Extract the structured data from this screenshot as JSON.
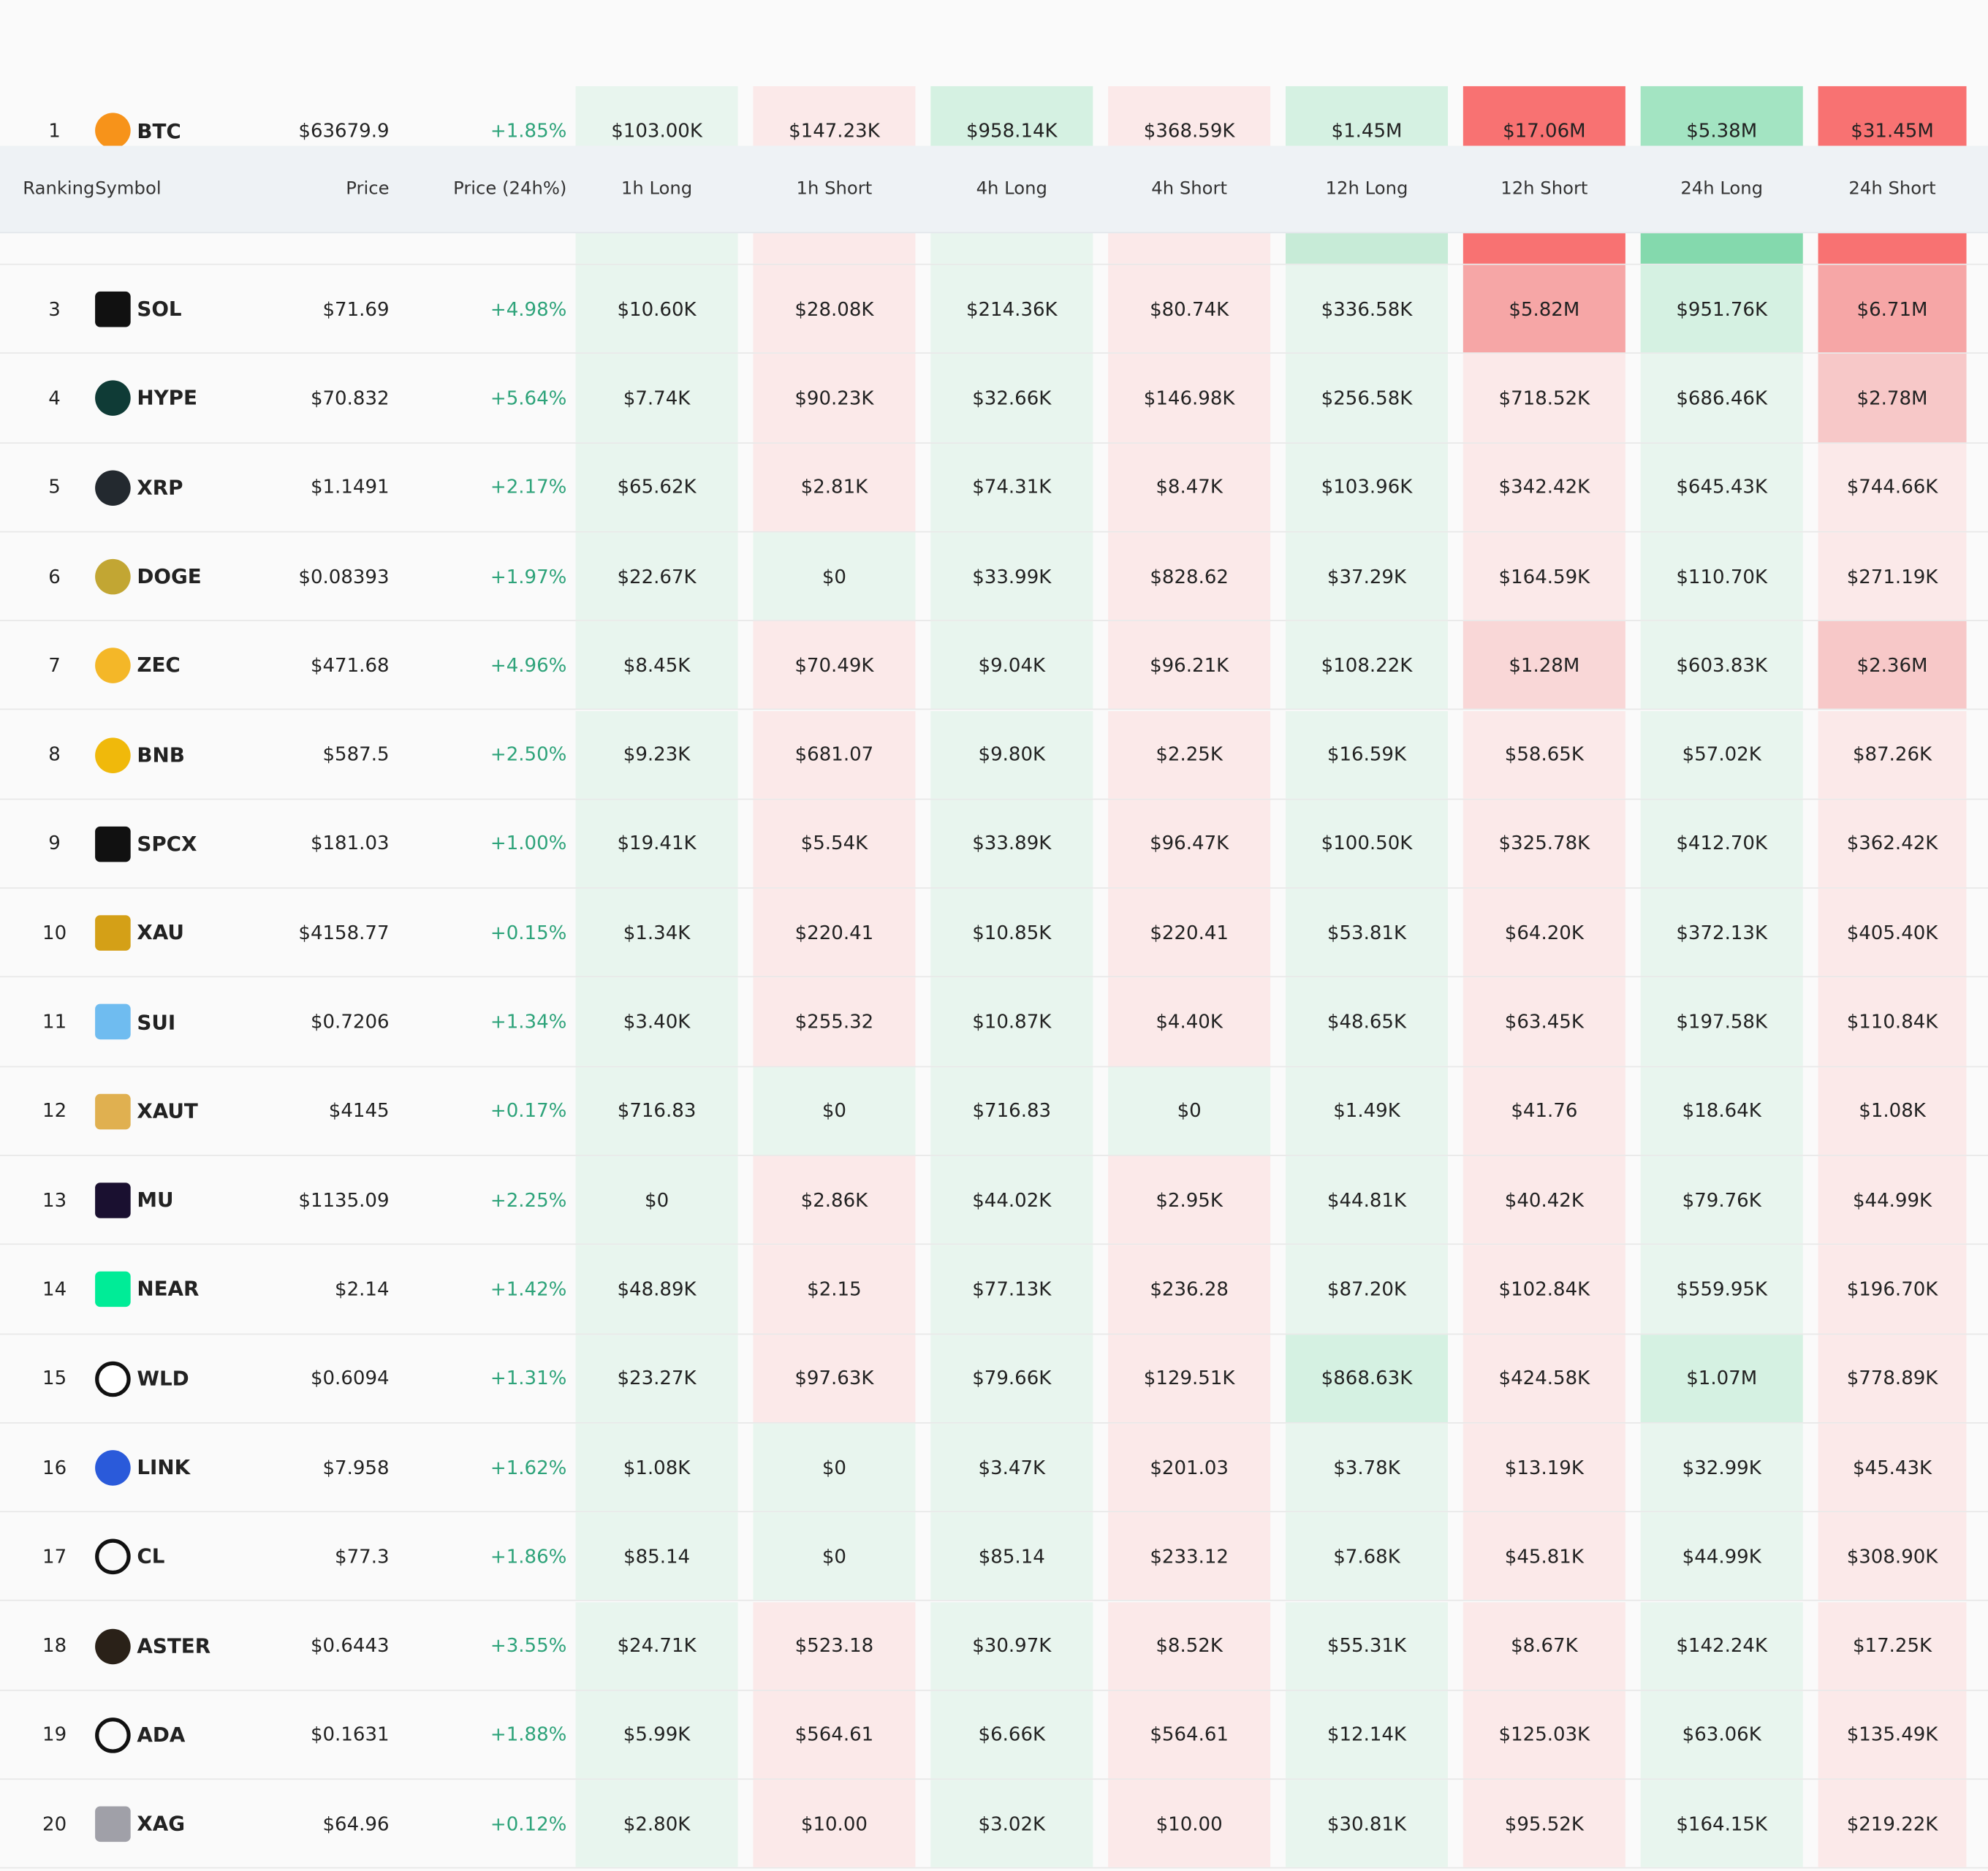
{
  "table": {
    "columns": [
      "Ranking",
      "Symbol",
      "Price",
      "Price (24h%)",
      "1h Long",
      "1h Short",
      "4h Long",
      "4h Short",
      "12h Long",
      "12h Short",
      "24h Long",
      "24h Short"
    ],
    "rows": [
      [
        "1",
        "BTC",
        "$63679.9",
        "+1.85%",
        "$103.00K",
        "$147.23K",
        "$958.14K",
        "$368.59K",
        "$1.45M",
        "$17.06M",
        "$5.38M",
        "$31.45M"
      ],
      [
        "3",
        "SOL",
        "$71.69",
        "+4.98%",
        "$10.60K",
        "$28.08K",
        "$214.36K",
        "$80.74K",
        "$336.58K",
        "$5.82M",
        "$951.76K",
        "$6.71M"
      ],
      [
        "4",
        "HYPE",
        "$70.832",
        "+5.64%",
        "$7.74K",
        "$90.23K",
        "$32.66K",
        "$146.98K",
        "$256.58K",
        "$718.52K",
        "$686.46K",
        "$2.78M"
      ],
      [
        "5",
        "XRP",
        "$1.1491",
        "+2.17%",
        "$65.62K",
        "$2.81K",
        "$74.31K",
        "$8.47K",
        "$103.96K",
        "$342.42K",
        "$645.43K",
        "$744.66K"
      ],
      [
        "6",
        "DOGE",
        "$0.08393",
        "+1.97%",
        "$22.67K",
        "$0",
        "$33.99K",
        "$828.62",
        "$37.29K",
        "$164.59K",
        "$110.70K",
        "$271.19K"
      ],
      [
        "7",
        "ZEC",
        "$471.68",
        "+4.96%",
        "$8.45K",
        "$70.49K",
        "$9.04K",
        "$96.21K",
        "$108.22K",
        "$1.28M",
        "$603.83K",
        "$2.36M"
      ],
      [
        "8",
        "BNB",
        "$587.5",
        "+2.50%",
        "$9.23K",
        "$681.07",
        "$9.80K",
        "$2.25K",
        "$16.59K",
        "$58.65K",
        "$57.02K",
        "$87.26K"
      ],
      [
        "9",
        "SPCX",
        "$181.03",
        "+1.00%",
        "$19.41K",
        "$5.54K",
        "$33.89K",
        "$96.47K",
        "$100.50K",
        "$325.78K",
        "$412.70K",
        "$362.42K"
      ],
      [
        "10",
        "XAU",
        "$4158.77",
        "+0.15%",
        "$1.34K",
        "$220.41",
        "$10.85K",
        "$220.41",
        "$53.81K",
        "$64.20K",
        "$372.13K",
        "$405.40K"
      ],
      [
        "11",
        "SUI",
        "$0.7206",
        "+1.34%",
        "$3.40K",
        "$255.32",
        "$10.87K",
        "$4.40K",
        "$48.65K",
        "$63.45K",
        "$197.58K",
        "$110.84K"
      ],
      [
        "12",
        "XAUT",
        "$4145",
        "+0.17%",
        "$716.83",
        "$0",
        "$716.83",
        "$0",
        "$1.49K",
        "$41.76",
        "$18.64K",
        "$1.08K"
      ],
      [
        "13",
        "MU",
        "$1135.09",
        "+2.25%",
        "$0",
        "$2.86K",
        "$44.02K",
        "$2.95K",
        "$44.81K",
        "$40.42K",
        "$79.76K",
        "$44.99K"
      ],
      [
        "14",
        "NEAR",
        "$2.14",
        "+1.42%",
        "$48.89K",
        "$2.15",
        "$77.13K",
        "$236.28",
        "$87.20K",
        "$102.84K",
        "$559.95K",
        "$196.70K"
      ],
      [
        "15",
        "WLD",
        "$0.6094",
        "+1.31%",
        "$23.27K",
        "$97.63K",
        "$79.66K",
        "$129.51K",
        "$868.63K",
        "$424.58K",
        "$1.07M",
        "$778.89K"
      ],
      [
        "16",
        "LINK",
        "$7.958",
        "+1.62%",
        "$1.08K",
        "$0",
        "$3.47K",
        "$201.03",
        "$3.78K",
        "$13.19K",
        "$32.99K",
        "$45.43K"
      ],
      [
        "17",
        "CL",
        "$77.3",
        "+1.86%",
        "$85.14",
        "$0",
        "$85.14",
        "$233.12",
        "$7.68K",
        "$45.81K",
        "$44.99K",
        "$308.90K"
      ],
      [
        "18",
        "ASTER",
        "$0.6443",
        "+3.55%",
        "$24.71K",
        "$523.18",
        "$30.97K",
        "$8.52K",
        "$55.31K",
        "$8.67K",
        "$142.24K",
        "$17.25K"
      ],
      [
        "19",
        "ADA",
        "$0.1631",
        "+1.88%",
        "$5.99K",
        "$564.61",
        "$6.66K",
        "$564.61",
        "$12.14K",
        "$125.03K",
        "$63.06K",
        "$135.49K"
      ],
      [
        "20",
        "XAG",
        "$64.96",
        "+0.12%",
        "$2.80K",
        "$10.00",
        "$3.02K",
        "$10.00",
        "$30.81K",
        "$95.52K",
        "$164.15K",
        "$219.22K"
      ]
    ]
  }
}
